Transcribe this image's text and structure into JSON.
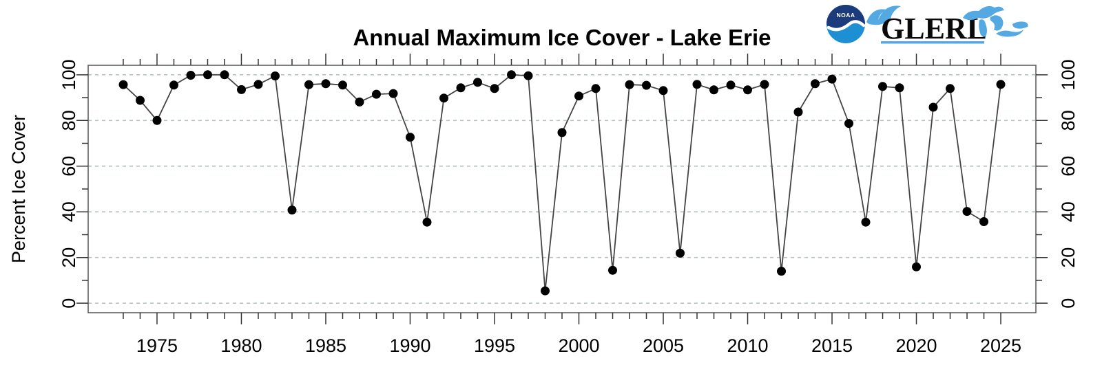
{
  "header": {
    "title": "Annual Maximum Ice Cover - Lake Erie",
    "logo": {
      "noaa_text": "NOAA",
      "glerl_text": "GLERL"
    }
  },
  "colors": {
    "background": "#ffffff",
    "grid": "#b7c3bf",
    "line": "#444444",
    "point": "#000000",
    "axis": "#333333",
    "box": "#555555",
    "noaa_dark": "#1c3b7d",
    "noaa_light": "#1e8fd2",
    "lakes_blue": "#54a9e2"
  },
  "chart_data": {
    "type": "line",
    "title": "Annual Maximum Ice Cover - Lake Erie",
    "xlabel": "",
    "ylabel": "Percent Ice Cover",
    "x": [
      1973,
      1974,
      1975,
      1976,
      1977,
      1978,
      1979,
      1980,
      1981,
      1982,
      1983,
      1984,
      1985,
      1986,
      1987,
      1988,
      1989,
      1990,
      1991,
      1992,
      1993,
      1994,
      1995,
      1996,
      1997,
      1998,
      1999,
      2000,
      2001,
      2002,
      2003,
      2004,
      2005,
      2006,
      2007,
      2008,
      2009,
      2010,
      2011,
      2012,
      2013,
      2014,
      2015,
      2016,
      2017,
      2018,
      2019,
      2020,
      2021,
      2022,
      2023,
      2024,
      2025
    ],
    "values": [
      95.7,
      88.8,
      80.0,
      95.5,
      99.8,
      100.0,
      100.0,
      93.5,
      95.8,
      99.5,
      40.8,
      95.7,
      96.1,
      95.5,
      88.1,
      91.5,
      91.8,
      72.7,
      35.5,
      89.8,
      94.3,
      96.7,
      94.0,
      100.0,
      99.6,
      5.4,
      74.7,
      90.7,
      94.0,
      14.4,
      95.7,
      95.4,
      93.1,
      21.9,
      95.8,
      93.4,
      95.5,
      93.4,
      95.8,
      14.0,
      83.7,
      96.1,
      98.1,
      78.7,
      35.5,
      94.9,
      94.3,
      15.9,
      85.8,
      94.0,
      40.2,
      35.7,
      95.8
    ],
    "marker": "filled-circle",
    "grid": true,
    "grid_values": [
      0,
      20,
      40,
      60,
      80,
      100
    ],
    "x_ticks_major": [
      1975,
      1980,
      1985,
      1990,
      1995,
      2000,
      2005,
      2010,
      2015,
      2020,
      2025
    ],
    "y_ticks_major": [
      0,
      20,
      40,
      60,
      80,
      100
    ],
    "y_ticks_minor": [
      10,
      30,
      50,
      70,
      90
    ],
    "xlim": [
      1970.92,
      2027.08
    ],
    "ylim": [
      -4.16,
      104.16
    ],
    "axes_mirrored": true,
    "legend": "none"
  }
}
